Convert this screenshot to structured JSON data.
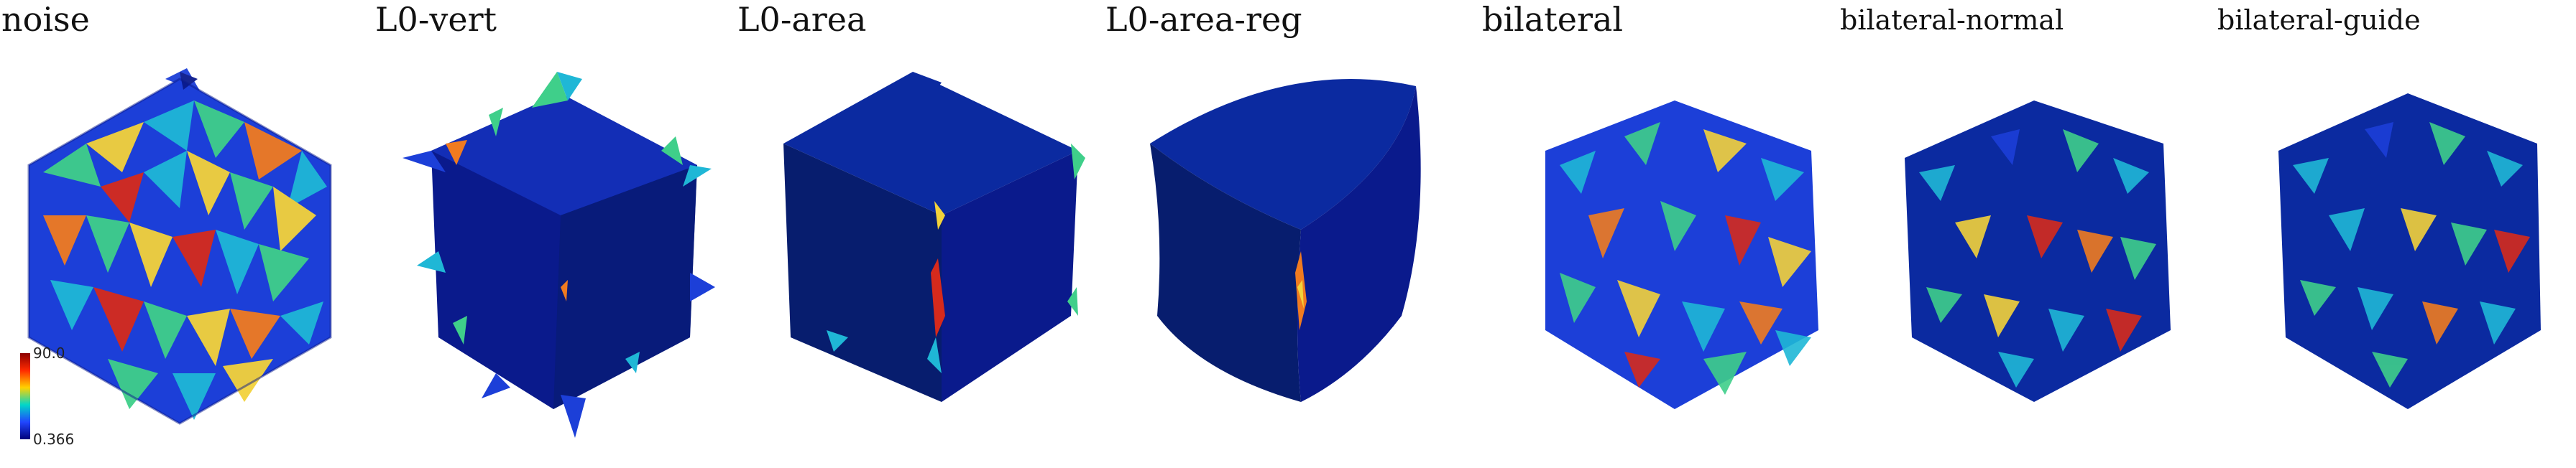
{
  "panels": [
    {
      "label": "noise"
    },
    {
      "label": "L0-vert"
    },
    {
      "label": "L0-area"
    },
    {
      "label": "L0-area-reg"
    },
    {
      "label": "bilateral"
    },
    {
      "label": "bilateral-normal"
    },
    {
      "label": "bilateral-guide"
    }
  ],
  "colorbar": {
    "max_label": "90.0",
    "min_label": "0.366",
    "colors": [
      "#8b0000",
      "#ff2a00",
      "#ffd200",
      "#00d7c8",
      "#2146ff",
      "#00007a"
    ]
  },
  "mesh_palette": {
    "dark_blue": "#0a1a8c",
    "navy": "#071d6e",
    "mid_blue": "#1c3fd8",
    "cyan": "#1fb7d6",
    "green": "#3fcf8a",
    "yellow": "#f3d23a",
    "orange": "#f07b20",
    "red": "#d62a1c"
  }
}
